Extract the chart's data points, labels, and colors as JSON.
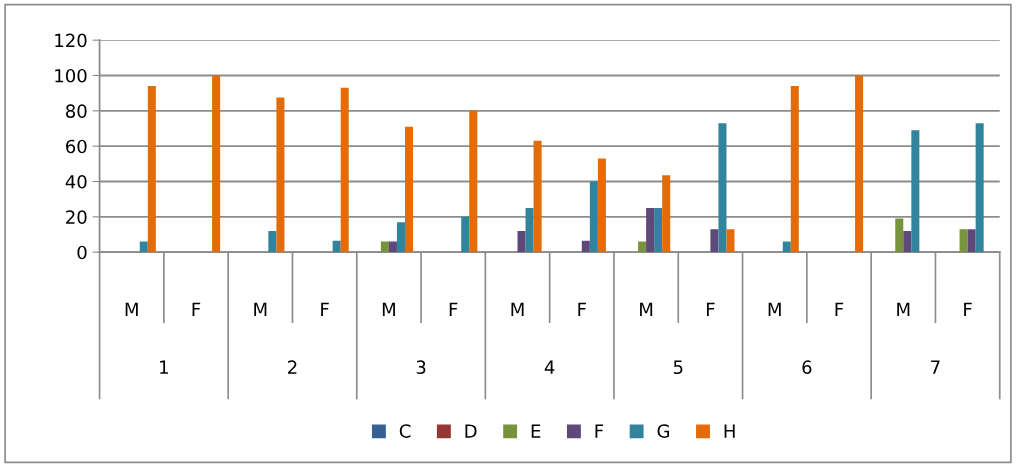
{
  "chart_data": {
    "type": "bar",
    "categories": [
      "M",
      "F",
      "M",
      "F",
      "M",
      "F",
      "M",
      "F",
      "M",
      "F",
      "M",
      "F",
      "M",
      "F"
    ],
    "annotations": [
      "1",
      "2",
      "3",
      "4",
      "5",
      "6",
      "7"
    ],
    "series": [
      {
        "name": "C",
        "color": "#376092",
        "values": [
          0,
          0,
          0,
          0,
          0,
          0,
          0,
          0,
          0,
          0,
          0,
          0,
          0,
          0
        ]
      },
      {
        "name": "D",
        "color": "#953735",
        "values": [
          0,
          0,
          0,
          0,
          0,
          0,
          0,
          0,
          0,
          0,
          0,
          0,
          0,
          0
        ]
      },
      {
        "name": "E",
        "color": "#77933c",
        "values": [
          0,
          0,
          0,
          0,
          6,
          0,
          0,
          0,
          6,
          0,
          0,
          0,
          19,
          13
        ]
      },
      {
        "name": "F",
        "color": "#5f497a",
        "values": [
          0,
          0,
          0,
          0,
          6,
          0,
          12,
          6.5,
          25,
          13,
          0,
          0,
          12,
          13
        ]
      },
      {
        "name": "G",
        "color": "#31849b",
        "values": [
          6,
          0,
          12,
          6.5,
          17,
          20,
          25,
          40,
          25,
          73,
          6,
          0,
          69,
          73
        ]
      },
      {
        "name": "H",
        "color": "#e36c09",
        "values": [
          94,
          100,
          87.5,
          93,
          71,
          80,
          63,
          53,
          43.5,
          13,
          94,
          100,
          0,
          0
        ]
      }
    ],
    "ylim": [
      0,
      120
    ],
    "yticks": [
      0,
      20,
      40,
      60,
      80,
      100,
      120
    ],
    "grid": "y",
    "legend": "bottom"
  }
}
